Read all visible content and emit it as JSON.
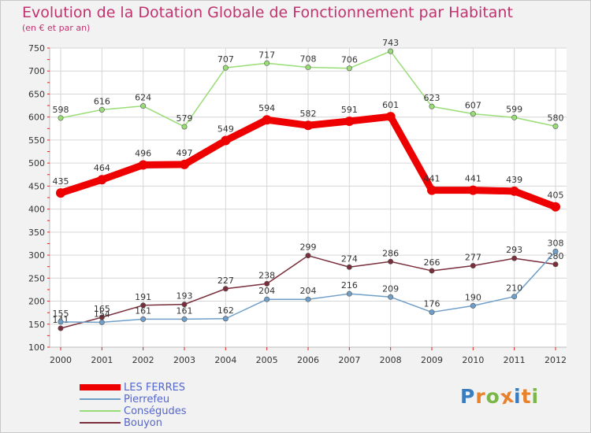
{
  "header": {
    "title": "Evolution de la Dotation Globale de Fonctionnement par Habitant",
    "subtitle": "(en € et par an)"
  },
  "logo": {
    "letters": [
      "P",
      "r",
      "o",
      "x",
      "i",
      "t",
      "i"
    ],
    "colors": [
      "#3a7cc0",
      "#e8812a",
      "#7ab648",
      "#e8812a",
      "#3a7cc0",
      "#e8812a",
      "#7ab648"
    ]
  },
  "chart_data": {
    "type": "line",
    "x": [
      "2000",
      "2001",
      "2002",
      "2003",
      "2004",
      "2005",
      "2006",
      "2007",
      "2008",
      "2009",
      "2010",
      "2011",
      "2012"
    ],
    "ylim": [
      100,
      750
    ],
    "yticks": [
      100,
      150,
      200,
      250,
      300,
      350,
      400,
      450,
      500,
      550,
      600,
      650,
      700,
      750
    ],
    "grid": true,
    "legend_position": "bottom-left",
    "series": [
      {
        "name": "LES FERRES",
        "values": [
          435,
          464,
          496,
          497,
          549,
          594,
          582,
          591,
          601,
          441,
          441,
          439,
          405
        ],
        "color": "#ee0000"
      },
      {
        "name": "Pierrefeu",
        "values": [
          155,
          154,
          161,
          161,
          162,
          204,
          204,
          216,
          209,
          176,
          190,
          210,
          308
        ],
        "color": "#6f9fc9"
      },
      {
        "name": "Conségudes",
        "values": [
          598,
          616,
          624,
          579,
          707,
          717,
          708,
          706,
          743,
          623,
          607,
          599,
          580
        ],
        "color": "#99dd77"
      },
      {
        "name": "Bouyon",
        "values": [
          141,
          165,
          191,
          193,
          227,
          238,
          299,
          274,
          286,
          266,
          277,
          293,
          280
        ],
        "color": "#7a2e3b"
      }
    ]
  }
}
